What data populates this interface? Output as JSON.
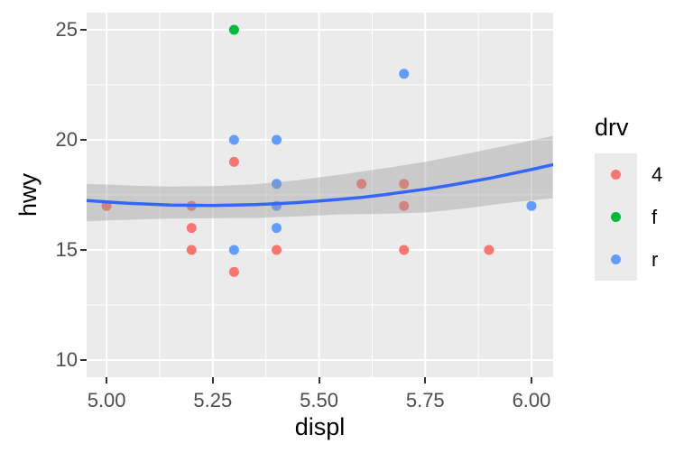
{
  "chart_data": {
    "type": "scatter",
    "title": "",
    "xlabel": "displ",
    "ylabel": "hwy",
    "xlim": [
      4.953,
      6.051
    ],
    "ylim": [
      9.22,
      25.78
    ],
    "grid": true,
    "panel_bg": "#EBEBEB",
    "grid_color": "#FFFFFF",
    "tick_label_color": "#4D4D4D",
    "tick_mark_color": "#333333",
    "x_ticks": [
      {
        "value": 5.0,
        "label": "5.00"
      },
      {
        "value": 5.25,
        "label": "5.25"
      },
      {
        "value": 5.5,
        "label": "5.50"
      },
      {
        "value": 5.75,
        "label": "5.75"
      },
      {
        "value": 6.0,
        "label": "6.00"
      }
    ],
    "y_ticks": [
      {
        "value": 10,
        "label": "10"
      },
      {
        "value": 15,
        "label": "15"
      },
      {
        "value": 20,
        "label": "20"
      },
      {
        "value": 25,
        "label": "25"
      }
    ],
    "series": [
      {
        "name": "4",
        "color": "#F8766D",
        "points": [
          [
            5.0,
            17
          ],
          [
            5.2,
            17
          ],
          [
            5.2,
            16
          ],
          [
            5.2,
            15
          ],
          [
            5.3,
            19
          ],
          [
            5.3,
            14
          ],
          [
            5.4,
            15
          ],
          [
            5.6,
            18
          ],
          [
            5.7,
            18
          ],
          [
            5.7,
            17
          ],
          [
            5.7,
            15
          ],
          [
            5.9,
            15
          ]
        ]
      },
      {
        "name": "f",
        "color": "#00BA38",
        "points": [
          [
            5.3,
            25
          ]
        ]
      },
      {
        "name": "r",
        "color": "#619CFF",
        "points": [
          [
            5.3,
            20
          ],
          [
            5.3,
            15
          ],
          [
            5.4,
            20
          ],
          [
            5.4,
            18
          ],
          [
            5.4,
            17
          ],
          [
            5.4,
            16
          ],
          [
            5.7,
            23
          ],
          [
            6.0,
            17
          ]
        ]
      }
    ],
    "smooth": {
      "color": "#3366FF",
      "line_width": 3.5,
      "band_color": "#999999",
      "band_alpha": 0.4,
      "x": [
        4.95,
        5.0,
        5.05,
        5.1,
        5.15,
        5.2,
        5.25,
        5.3,
        5.35,
        5.4,
        5.45,
        5.5,
        5.55,
        5.6,
        5.65,
        5.7,
        5.75,
        5.8,
        5.85,
        5.9,
        5.95,
        6.0,
        6.05
      ],
      "y": [
        17.25,
        17.18,
        17.12,
        17.08,
        17.04,
        17.03,
        17.02,
        17.04,
        17.06,
        17.1,
        17.15,
        17.22,
        17.3,
        17.39,
        17.5,
        17.63,
        17.76,
        17.91,
        18.08,
        18.25,
        18.45,
        18.65,
        18.87
      ],
      "upper": [
        18.0,
        17.97,
        17.93,
        17.9,
        17.88,
        17.89,
        17.9,
        17.94,
        17.98,
        18.08,
        18.17,
        18.3,
        18.42,
        18.56,
        18.7,
        18.85,
        19.0,
        19.19,
        19.38,
        19.58,
        19.77,
        19.98,
        20.18
      ],
      "lower": [
        16.3,
        16.34,
        16.37,
        16.4,
        16.42,
        16.43,
        16.44,
        16.45,
        16.45,
        16.49,
        16.52,
        16.57,
        16.62,
        16.63,
        16.64,
        16.67,
        16.7,
        16.8,
        16.9,
        17.03,
        17.15,
        17.25,
        17.35
      ]
    },
    "legend": {
      "title": "drv",
      "entries": [
        {
          "label": "4",
          "color": "#F8766D"
        },
        {
          "label": "f",
          "color": "#00BA38"
        },
        {
          "label": "r",
          "color": "#619CFF"
        }
      ],
      "key_bg": "#EBEBEB"
    },
    "point_radius": 5.5
  }
}
